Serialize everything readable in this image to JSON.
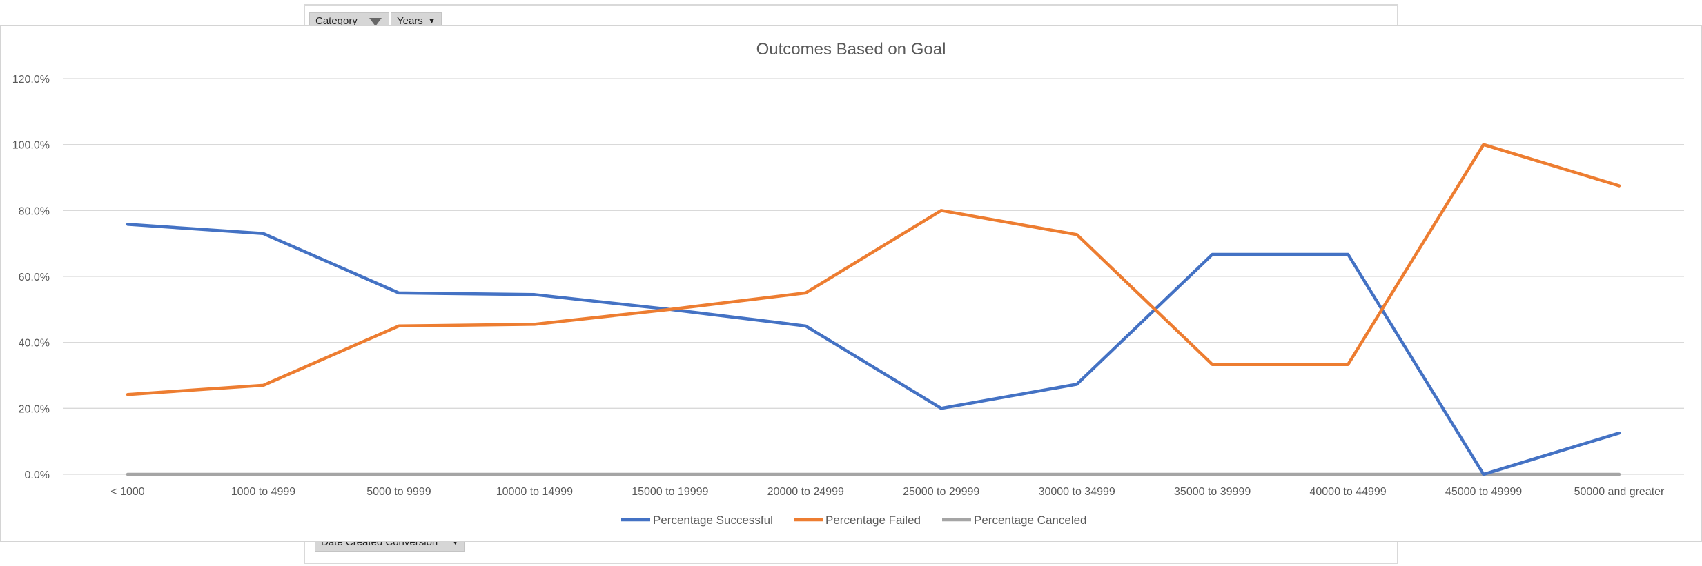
{
  "pivot": {
    "filters": [
      {
        "label": "Category"
      },
      {
        "label": "Years"
      }
    ],
    "row_field": "Date Created Conversion"
  },
  "chart_data": {
    "type": "line",
    "title": "Outcomes Based on Goal",
    "xlabel": "",
    "ylabel": "",
    "categories": [
      "< 1000",
      "1000 to 4999",
      "5000 to 9999",
      "10000 to 14999",
      "15000 to 19999",
      "20000 to 24999",
      "25000 to 29999",
      "30000 to 34999",
      "35000 to 39999",
      "40000 to 44999",
      "45000 to 49999",
      "50000 and greater"
    ],
    "ylim": [
      0,
      1.2
    ],
    "yticks": [
      0,
      0.2,
      0.4,
      0.6,
      0.8,
      1.0,
      1.2
    ],
    "ytick_labels": [
      "0.0%",
      "20.0%",
      "40.0%",
      "60.0%",
      "80.0%",
      "100.0%",
      "120.0%"
    ],
    "grid": true,
    "legend_position": "bottom",
    "series": [
      {
        "name": "Percentage Successful",
        "color": "#4472c4",
        "values": [
          0.758,
          0.73,
          0.55,
          0.545,
          0.5,
          0.45,
          0.2,
          0.273,
          0.667,
          0.667,
          0.0,
          0.125
        ]
      },
      {
        "name": "Percentage Failed",
        "color": "#ed7d31",
        "values": [
          0.242,
          0.27,
          0.45,
          0.455,
          0.5,
          0.55,
          0.8,
          0.727,
          0.333,
          0.333,
          1.0,
          0.875
        ]
      },
      {
        "name": "Percentage Canceled",
        "color": "#a5a5a5",
        "values": [
          0,
          0,
          0,
          0,
          0,
          0,
          0,
          0,
          0,
          0,
          0,
          0
        ]
      }
    ]
  }
}
